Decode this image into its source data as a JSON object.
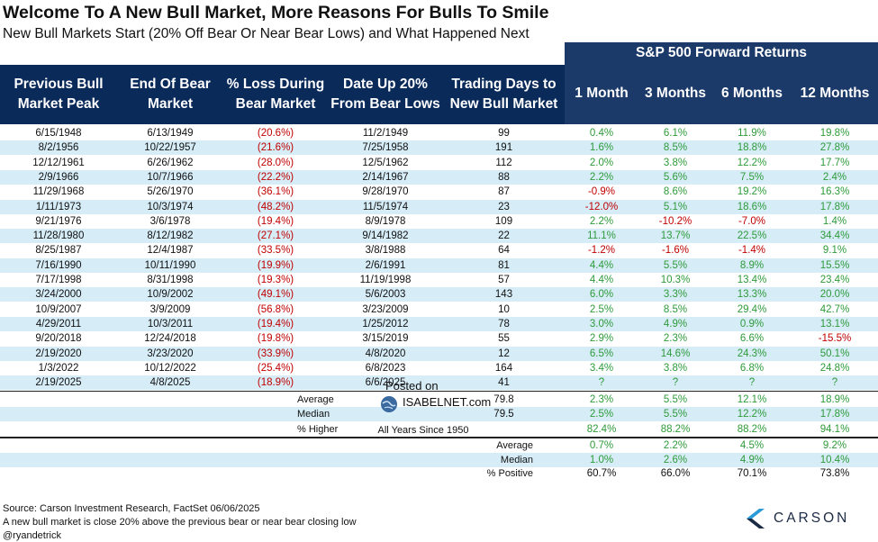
{
  "title": "Welcome To A New Bull Market, More Reasons For Bulls To Smile",
  "subtitle": "New Bull Markets Start (20% Off Bear Or Near Bear Lows) and What Happened Next",
  "forward_header": "S&P 500 Forward Returns",
  "columns": {
    "peak": "Previous Bull Market Peak",
    "end": "End Of Bear Market",
    "loss": "% Loss During Bear Market",
    "up20": "Date Up 20% From Bear Lows",
    "days": "Trading Days to New Bull Market",
    "m1": "1 Month",
    "m3": "3 Months",
    "m6": "6 Months",
    "m12": "12 Months"
  },
  "rows": [
    {
      "peak": "6/15/1948",
      "end": "6/13/1949",
      "loss": "(20.6%)",
      "up20": "11/2/1949",
      "days": "99",
      "m1": "0.4%",
      "m3": "6.1%",
      "m6": "11.9%",
      "m12": "19.8%"
    },
    {
      "peak": "8/2/1956",
      "end": "10/22/1957",
      "loss": "(21.6%)",
      "up20": "7/25/1958",
      "days": "191",
      "m1": "1.6%",
      "m3": "8.5%",
      "m6": "18.8%",
      "m12": "27.8%"
    },
    {
      "peak": "12/12/1961",
      "end": "6/26/1962",
      "loss": "(28.0%)",
      "up20": "12/5/1962",
      "days": "112",
      "m1": "2.0%",
      "m3": "3.8%",
      "m6": "12.2%",
      "m12": "17.7%"
    },
    {
      "peak": "2/9/1966",
      "end": "10/7/1966",
      "loss": "(22.2%)",
      "up20": "2/14/1967",
      "days": "88",
      "m1": "2.2%",
      "m3": "5.6%",
      "m6": "7.5%",
      "m12": "2.4%"
    },
    {
      "peak": "11/29/1968",
      "end": "5/26/1970",
      "loss": "(36.1%)",
      "up20": "9/28/1970",
      "days": "87",
      "m1": "-0.9%",
      "m3": "8.6%",
      "m6": "19.2%",
      "m12": "16.3%"
    },
    {
      "peak": "1/11/1973",
      "end": "10/3/1974",
      "loss": "(48.2%)",
      "up20": "11/5/1974",
      "days": "23",
      "m1": "-12.0%",
      "m3": "5.1%",
      "m6": "18.6%",
      "m12": "17.8%"
    },
    {
      "peak": "9/21/1976",
      "end": "3/6/1978",
      "loss": "(19.4%)",
      "up20": "8/9/1978",
      "days": "109",
      "m1": "2.2%",
      "m3": "-10.2%",
      "m6": "-7.0%",
      "m12": "1.4%"
    },
    {
      "peak": "11/28/1980",
      "end": "8/12/1982",
      "loss": "(27.1%)",
      "up20": "9/14/1982",
      "days": "22",
      "m1": "11.1%",
      "m3": "13.7%",
      "m6": "22.5%",
      "m12": "34.4%"
    },
    {
      "peak": "8/25/1987",
      "end": "12/4/1987",
      "loss": "(33.5%)",
      "up20": "3/8/1988",
      "days": "64",
      "m1": "-1.2%",
      "m3": "-1.6%",
      "m6": "-1.4%",
      "m12": "9.1%"
    },
    {
      "peak": "7/16/1990",
      "end": "10/11/1990",
      "loss": "(19.9%)",
      "up20": "2/6/1991",
      "days": "81",
      "m1": "4.4%",
      "m3": "5.5%",
      "m6": "8.9%",
      "m12": "15.5%"
    },
    {
      "peak": "7/17/1998",
      "end": "8/31/1998",
      "loss": "(19.3%)",
      "up20": "11/19/1998",
      "days": "57",
      "m1": "4.4%",
      "m3": "10.3%",
      "m6": "13.4%",
      "m12": "23.4%"
    },
    {
      "peak": "3/24/2000",
      "end": "10/9/2002",
      "loss": "(49.1%)",
      "up20": "5/6/2003",
      "days": "143",
      "m1": "6.0%",
      "m3": "3.3%",
      "m6": "13.3%",
      "m12": "20.0%"
    },
    {
      "peak": "10/9/2007",
      "end": "3/9/2009",
      "loss": "(56.8%)",
      "up20": "3/23/2009",
      "days": "10",
      "m1": "2.5%",
      "m3": "8.5%",
      "m6": "29.4%",
      "m12": "42.7%"
    },
    {
      "peak": "4/29/2011",
      "end": "10/3/2011",
      "loss": "(19.4%)",
      "up20": "1/25/2012",
      "days": "78",
      "m1": "3.0%",
      "m3": "4.9%",
      "m6": "0.9%",
      "m12": "13.1%"
    },
    {
      "peak": "9/20/2018",
      "end": "12/24/2018",
      "loss": "(19.8%)",
      "up20": "3/15/2019",
      "days": "55",
      "m1": "2.9%",
      "m3": "2.3%",
      "m6": "6.6%",
      "m12": "-15.5%"
    },
    {
      "peak": "2/19/2020",
      "end": "3/23/2020",
      "loss": "(33.9%)",
      "up20": "4/8/2020",
      "days": "12",
      "m1": "6.5%",
      "m3": "14.6%",
      "m6": "24.3%",
      "m12": "50.1%"
    },
    {
      "peak": "1/3/2022",
      "end": "10/12/2022",
      "loss": "(25.4%)",
      "up20": "6/8/2023",
      "days": "164",
      "m1": "3.4%",
      "m3": "3.8%",
      "m6": "6.8%",
      "m12": "24.8%"
    },
    {
      "peak": "2/19/2025",
      "end": "4/8/2025",
      "loss": "(18.9%)",
      "up20": "6/6/2025",
      "days": "41",
      "m1": "?",
      "m3": "?",
      "m6": "?",
      "m12": "?"
    }
  ],
  "summary": [
    {
      "label": "Average",
      "days": "79.8",
      "m1": "2.3%",
      "m3": "5.5%",
      "m6": "12.1%",
      "m12": "18.9%"
    },
    {
      "label": "Median",
      "days": "79.5",
      "m1": "2.5%",
      "m3": "5.5%",
      "m6": "12.2%",
      "m12": "17.8%"
    },
    {
      "label": "% Higher",
      "days": "",
      "m1": "82.4%",
      "m3": "88.2%",
      "m6": "88.2%",
      "m12": "94.1%"
    }
  ],
  "watermark": {
    "posted_on": "Posted on",
    "site": "ISABELNET.com"
  },
  "all_years": {
    "label": "All Years Since 1950",
    "rows": [
      {
        "label": "Average",
        "m1": "0.7%",
        "m3": "2.2%",
        "m6": "4.5%",
        "m12": "9.2%"
      },
      {
        "label": "Median",
        "m1": "1.0%",
        "m3": "2.6%",
        "m6": "4.9%",
        "m12": "10.4%"
      },
      {
        "label": "% Positive",
        "m1": "60.7%",
        "m3": "66.0%",
        "m6": "70.1%",
        "m12": "73.8%"
      }
    ]
  },
  "footer": {
    "source": "Source: Carson Investment Research, FactSet 06/06/2025",
    "note": "A new bull market is close 20% above the previous bear or near bear closing low",
    "handle": "@ryandetrick"
  },
  "brand": "CARSON",
  "colors": {
    "navy": "#0a2a5a",
    "teal": "#1b3a6a",
    "stripe": "#d6ecf7",
    "negative": "#c00000",
    "positive": "#2e9a3a"
  }
}
